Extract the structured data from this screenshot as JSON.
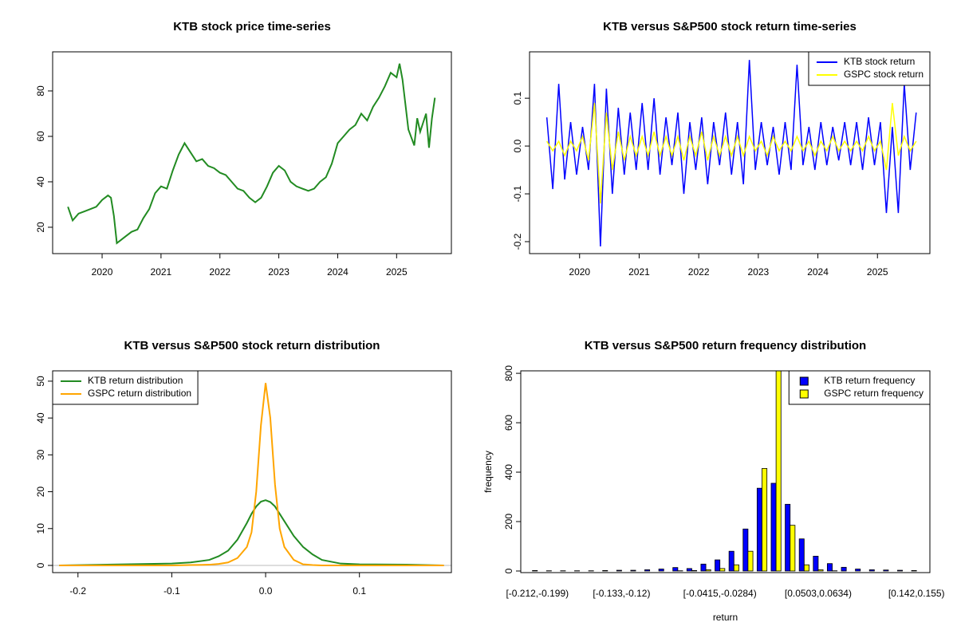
{
  "chart_data": [
    {
      "type": "line",
      "title": "KTB stock price time-series",
      "x": [
        2019.42,
        2019.5,
        2019.6,
        2019.7,
        2019.8,
        2019.9,
        2020.0,
        2020.1,
        2020.15,
        2020.2,
        2020.25,
        2020.3,
        2020.4,
        2020.5,
        2020.6,
        2020.7,
        2020.8,
        2020.9,
        2021.0,
        2021.1,
        2021.2,
        2021.3,
        2021.4,
        2021.5,
        2021.6,
        2021.7,
        2021.8,
        2021.9,
        2022.0,
        2022.1,
        2022.2,
        2022.3,
        2022.4,
        2022.5,
        2022.6,
        2022.7,
        2022.8,
        2022.9,
        2023.0,
        2023.1,
        2023.2,
        2023.3,
        2023.4,
        2023.5,
        2023.6,
        2023.7,
        2023.8,
        2023.9,
        2024.0,
        2024.1,
        2024.2,
        2024.3,
        2024.4,
        2024.5,
        2024.6,
        2024.7,
        2024.8,
        2024.9,
        2025.0,
        2025.05,
        2025.1,
        2025.2,
        2025.3,
        2025.35,
        2025.4,
        2025.5,
        2025.55,
        2025.6,
        2025.65
      ],
      "series": [
        {
          "color": "#228b22",
          "values": [
            29,
            23,
            26,
            27,
            28,
            29,
            32,
            34,
            33,
            25,
            13,
            14,
            16,
            18,
            19,
            24,
            28,
            35,
            38,
            37,
            45,
            52,
            57,
            53,
            49,
            50,
            47,
            46,
            44,
            43,
            40,
            37,
            36,
            33,
            31,
            33,
            38,
            44,
            47,
            45,
            40,
            38,
            37,
            36,
            37,
            40,
            42,
            48,
            57,
            60,
            63,
            65,
            70,
            67,
            73,
            77,
            82,
            88,
            86,
            92,
            85,
            63,
            56,
            68,
            62,
            70,
            55,
            68,
            77
          ]
        }
      ],
      "xlim": [
        2019.16,
        2025.93
      ],
      "xticks": [
        2020,
        2021,
        2022,
        2023,
        2024,
        2025
      ],
      "ylim": [
        8.4,
        97.2
      ],
      "yticks": [
        20,
        40,
        60,
        80
      ]
    },
    {
      "type": "line",
      "title": "KTB versus S&P500 stock return time-series",
      "x": [
        2019.45,
        2019.55,
        2019.65,
        2019.75,
        2019.85,
        2019.95,
        2020.05,
        2020.15,
        2020.25,
        2020.35,
        2020.45,
        2020.55,
        2020.65,
        2020.75,
        2020.85,
        2020.95,
        2021.05,
        2021.15,
        2021.25,
        2021.35,
        2021.45,
        2021.55,
        2021.65,
        2021.75,
        2021.85,
        2021.95,
        2022.05,
        2022.15,
        2022.25,
        2022.35,
        2022.45,
        2022.55,
        2022.65,
        2022.75,
        2022.85,
        2022.95,
        2023.05,
        2023.15,
        2023.25,
        2023.35,
        2023.45,
        2023.55,
        2023.65,
        2023.75,
        2023.85,
        2023.95,
        2024.05,
        2024.15,
        2024.25,
        2024.35,
        2024.45,
        2024.55,
        2024.65,
        2024.75,
        2024.85,
        2024.95,
        2025.05,
        2025.15,
        2025.25,
        2025.35,
        2025.45,
        2025.55,
        2025.65
      ],
      "series": [
        {
          "name": "KTB stock return",
          "color": "#0000ff",
          "values": [
            0.06,
            -0.09,
            0.13,
            -0.07,
            0.05,
            -0.06,
            0.04,
            -0.05,
            0.13,
            -0.21,
            0.12,
            -0.1,
            0.08,
            -0.06,
            0.07,
            -0.05,
            0.09,
            -0.05,
            0.1,
            -0.06,
            0.06,
            -0.04,
            0.07,
            -0.1,
            0.05,
            -0.05,
            0.06,
            -0.08,
            0.05,
            -0.04,
            0.07,
            -0.06,
            0.05,
            -0.08,
            0.18,
            -0.05,
            0.05,
            -0.04,
            0.04,
            -0.06,
            0.05,
            -0.05,
            0.17,
            -0.04,
            0.04,
            -0.05,
            0.05,
            -0.04,
            0.04,
            -0.03,
            0.05,
            -0.04,
            0.05,
            -0.05,
            0.06,
            -0.04,
            0.05,
            -0.14,
            0.04,
            -0.14,
            0.13,
            -0.05,
            0.07
          ]
        },
        {
          "name": "GSPC stock return",
          "color": "#ffff00",
          "values": [
            0.01,
            -0.01,
            0.01,
            -0.02,
            0.01,
            -0.01,
            0.02,
            -0.03,
            0.09,
            -0.12,
            0.07,
            -0.05,
            0.03,
            -0.03,
            0.02,
            -0.02,
            0.02,
            -0.02,
            0.03,
            -0.02,
            0.02,
            -0.02,
            0.02,
            -0.03,
            0.02,
            -0.02,
            0.03,
            -0.03,
            0.02,
            -0.02,
            0.02,
            -0.02,
            0.02,
            -0.02,
            0.02,
            -0.01,
            0.01,
            -0.02,
            0.02,
            -0.01,
            0.01,
            -0.01,
            0.02,
            -0.01,
            0.01,
            -0.02,
            0.01,
            -0.01,
            0.02,
            -0.01,
            0.01,
            -0.01,
            0.01,
            -0.01,
            0.02,
            -0.01,
            0.01,
            -0.05,
            0.09,
            -0.02,
            0.02,
            -0.01,
            0.01
          ]
        }
      ],
      "xlim": [
        2019.16,
        2025.88
      ],
      "xticks": [
        2020,
        2021,
        2022,
        2023,
        2024,
        2025
      ],
      "ylim": [
        -0.225,
        0.197
      ],
      "yticks": [
        -0.2,
        -0.1,
        {
          "value": 0,
          "label": "0.0"
        },
        0.1
      ],
      "legend": "topright"
    },
    {
      "type": "line",
      "title": "KTB versus S&P500 stock return distribution",
      "x": [
        -0.22,
        -0.15,
        -0.1,
        -0.08,
        -0.06,
        -0.05,
        -0.04,
        -0.03,
        -0.02,
        -0.015,
        -0.01,
        -0.005,
        0,
        0.005,
        0.01,
        0.015,
        0.02,
        0.03,
        0.04,
        0.05,
        0.06,
        0.08,
        0.1,
        0.15,
        0.19
      ],
      "series": [
        {
          "name": "KTB return distribution",
          "color": "#228b22",
          "values": [
            0,
            0.3,
            0.5,
            0.8,
            1.5,
            2.5,
            4,
            7,
            11.5,
            14,
            16,
            17.3,
            17.7,
            17.2,
            16,
            14,
            12,
            8,
            5,
            3,
            1.5,
            0.5,
            0.3,
            0.2,
            0
          ]
        },
        {
          "name": "GSPC return distribution",
          "color": "#ffa500",
          "values": [
            0,
            0,
            0,
            0.1,
            0.2,
            0.4,
            0.8,
            2,
            5,
            9,
            20,
            38,
            49.5,
            40,
            22,
            10,
            5,
            1.5,
            0.3,
            0.1,
            0,
            0,
            0,
            0,
            0
          ]
        }
      ],
      "xlim": [
        -0.227,
        0.198
      ],
      "xticks": [
        -0.2,
        -0.1,
        {
          "value": 0,
          "label": "0.0"
        },
        0.1
      ],
      "ylim": [
        -1.95,
        52.8
      ],
      "yticks": [
        0,
        10,
        20,
        30,
        40,
        50
      ],
      "legend": "topleft"
    },
    {
      "type": "bar",
      "title": "KTB versus S&P500 return frequency distribution",
      "x_label": "return",
      "y_label": "frequency",
      "categories": [
        "[-0.212,-0.199)",
        null,
        null,
        null,
        null,
        null,
        "[-0.133,-0.12)",
        null,
        null,
        null,
        null,
        null,
        null,
        "[-0.0415,-0.0284)",
        null,
        null,
        null,
        null,
        null,
        null,
        "[0.0503,0.0634)",
        null,
        null,
        null,
        null,
        null,
        null,
        "[0.142,0.155)"
      ],
      "series": [
        {
          "name": "KTB return frequency",
          "color": "#0000ff",
          "values": [
            2,
            1,
            1,
            1,
            1,
            2,
            3,
            3,
            5,
            8,
            14,
            10,
            28,
            45,
            80,
            170,
            335,
            355,
            270,
            130,
            60,
            30,
            15,
            8,
            5,
            4,
            3,
            2
          ]
        },
        {
          "name": "GSPC return frequency",
          "color": "#ffff00",
          "values": [
            0,
            0,
            0,
            0,
            0,
            0,
            0,
            0,
            0,
            0,
            1,
            2,
            5,
            10,
            25,
            80,
            415,
            860,
            185,
            25,
            5,
            1,
            0,
            0,
            0,
            0,
            0,
            0
          ]
        }
      ],
      "ylim": [
        -6.5,
        810
      ],
      "yticks": [
        0,
        200,
        400,
        600,
        800
      ],
      "legend": "topright"
    }
  ]
}
